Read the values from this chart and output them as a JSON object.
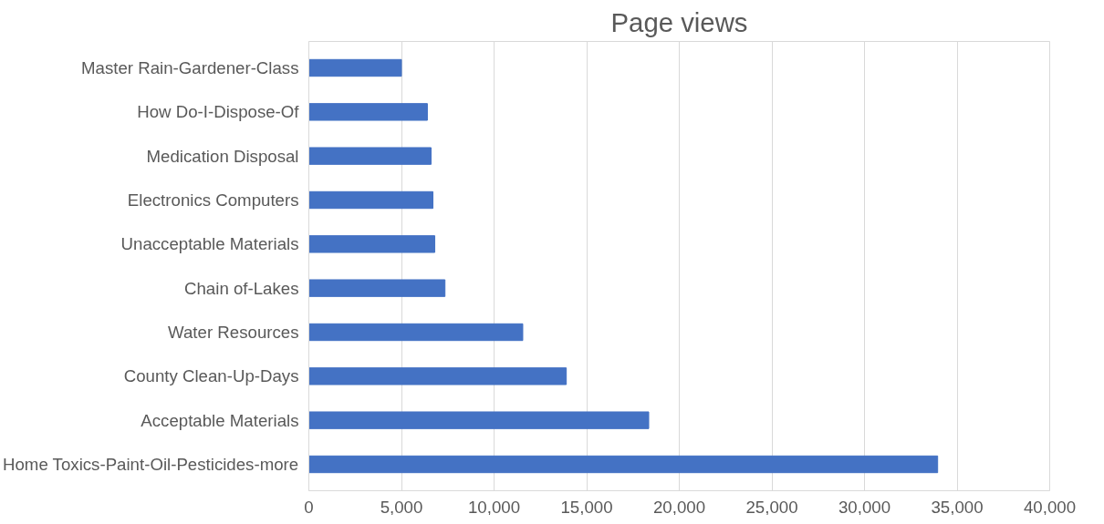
{
  "chart_data": {
    "type": "bar",
    "orientation": "horizontal",
    "title": "Page views",
    "categories": [
      "Master Rain-Gardener-Class",
      "How Do-I-Dispose-Of",
      "Medication Disposal",
      "Electronics Computers",
      "Unacceptable Materials",
      "Chain of-Lakes",
      "Water Resources",
      "County Clean-Up-Days",
      "Acceptable Materials",
      "Home Toxics-Paint-Oil-Pesticides-more"
    ],
    "values": [
      5000,
      6400,
      6600,
      6700,
      6800,
      7350,
      11550,
      13900,
      18350,
      33950
    ],
    "color": "#4472c4",
    "xlim": [
      0,
      40000
    ],
    "xticks": [
      {
        "value": 0,
        "label": "0"
      },
      {
        "value": 5000,
        "label": "5,000"
      },
      {
        "value": 10000,
        "label": "10,000"
      },
      {
        "value": 15000,
        "label": "15,000"
      },
      {
        "value": 20000,
        "label": "20,000"
      },
      {
        "value": 25000,
        "label": "25,000"
      },
      {
        "value": 30000,
        "label": "30,000"
      },
      {
        "value": 35000,
        "label": "35,000"
      },
      {
        "value": 40000,
        "label": "40,000"
      }
    ],
    "grid": "x"
  }
}
